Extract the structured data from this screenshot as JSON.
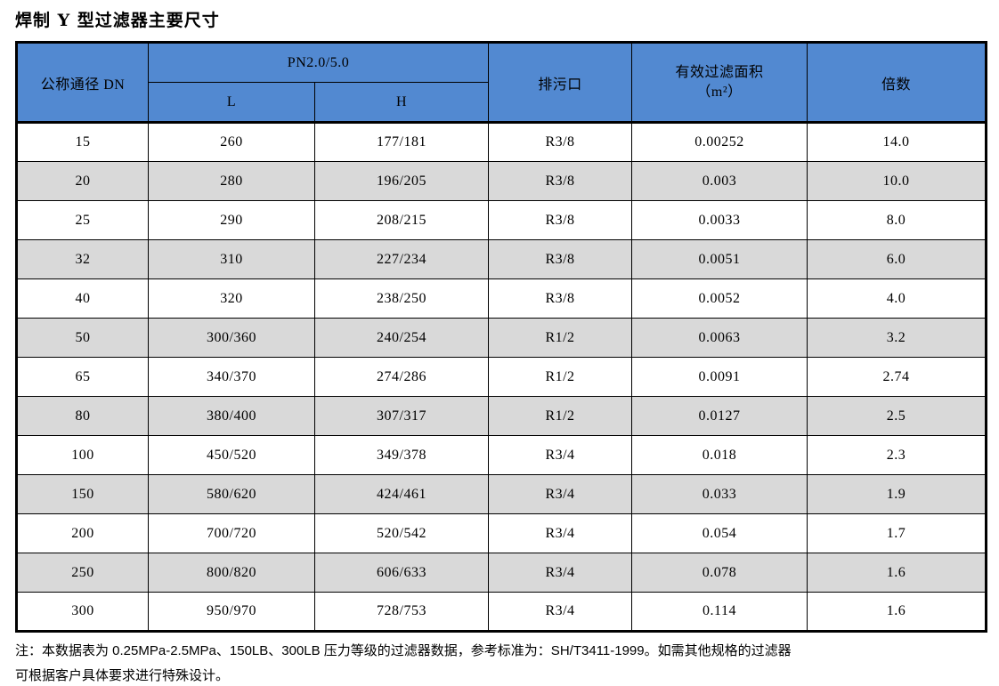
{
  "title": "焊制 Y 型过滤器主要尺寸",
  "colors": {
    "header_bg": "#5289d1",
    "alt_row_bg": "#d9d9d9",
    "border": "#000000"
  },
  "table": {
    "headers": {
      "dn": "公称通径 DN",
      "pn_group": "PN2.0/5.0",
      "l": "L",
      "h": "H",
      "drain": "排污口",
      "area_line1": "有效过滤面积",
      "area_line2": "（m²）",
      "ratio": "倍数"
    },
    "rows": [
      [
        "15",
        "260",
        "177/181",
        "R3/8",
        "0.00252",
        "14.0"
      ],
      [
        "20",
        "280",
        "196/205",
        "R3/8",
        "0.003",
        "10.0"
      ],
      [
        "25",
        "290",
        "208/215",
        "R3/8",
        "0.0033",
        "8.0"
      ],
      [
        "32",
        "310",
        "227/234",
        "R3/8",
        "0.0051",
        "6.0"
      ],
      [
        "40",
        "320",
        "238/250",
        "R3/8",
        "0.0052",
        "4.0"
      ],
      [
        "50",
        "300/360",
        "240/254",
        "R1/2",
        "0.0063",
        "3.2"
      ],
      [
        "65",
        "340/370",
        "274/286",
        "R1/2",
        "0.0091",
        "2.74"
      ],
      [
        "80",
        "380/400",
        "307/317",
        "R1/2",
        "0.0127",
        "2.5"
      ],
      [
        "100",
        "450/520",
        "349/378",
        "R3/4",
        "0.018",
        "2.3"
      ],
      [
        "150",
        "580/620",
        "424/461",
        "R3/4",
        "0.033",
        "1.9"
      ],
      [
        "200",
        "700/720",
        "520/542",
        "R3/4",
        "0.054",
        "1.7"
      ],
      [
        "250",
        "800/820",
        "606/633",
        "R3/4",
        "0.078",
        "1.6"
      ],
      [
        "300",
        "950/970",
        "728/753",
        "R3/4",
        "0.114",
        "1.6"
      ]
    ]
  },
  "notes": {
    "line1": "注：本数据表为 0.25MPa-2.5MPa、150LB、300LB 压力等级的过滤器数据，参考标准为：SH/T3411-1999。如需其他规格的过滤器",
    "line2": "可根据客户具体要求进行特殊设计。"
  }
}
